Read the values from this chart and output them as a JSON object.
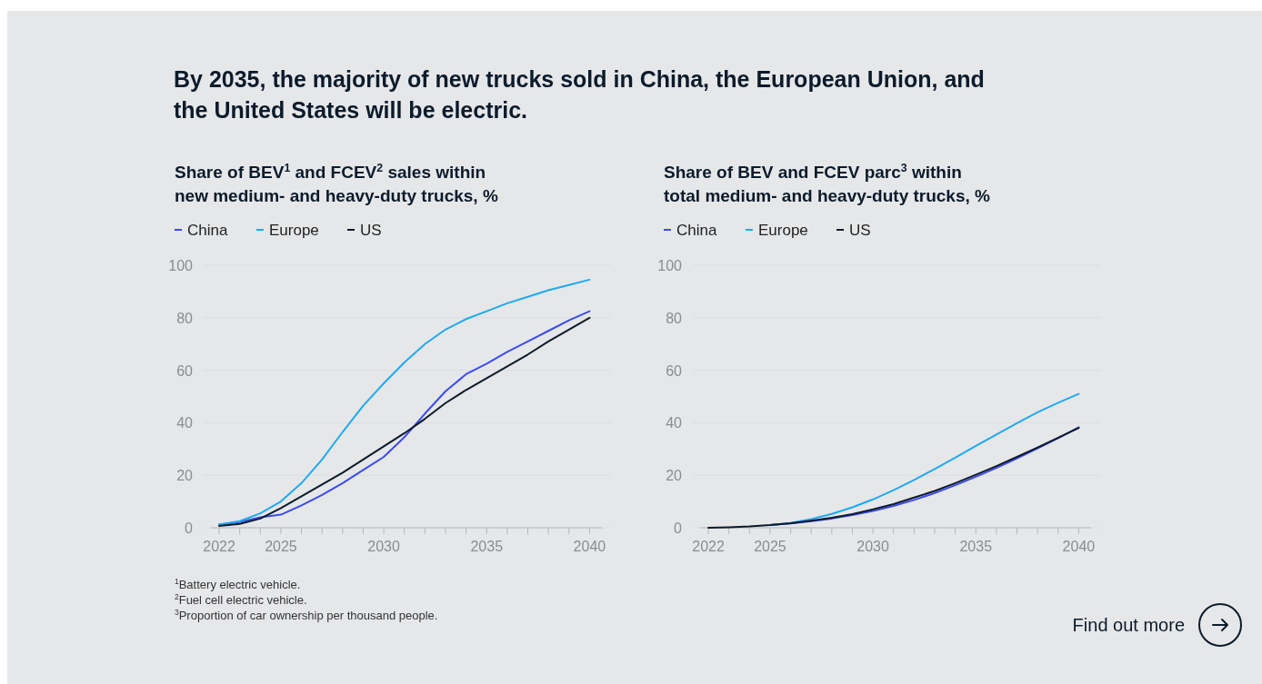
{
  "chart_data": [
    {
      "type": "line",
      "title": "By 2035, the majority of new trucks sold in China, the European Union, and the United States will be electric.",
      "subtitle": "Share of BEV$^{1}$ and FCEV$^{2}$ sales within new medium- and heavy-duty trucks, %",
      "x": [
        2022,
        2023,
        2024,
        2025,
        2026,
        2027,
        2028,
        2029,
        2030,
        2031,
        2032,
        2033,
        2034,
        2035,
        2036,
        2037,
        2038,
        2039,
        2040
      ],
      "xlim": [
        2021.6,
        2040.6
      ],
      "xticks": [
        2022,
        {
          "value": 2023,
          "label": null
        },
        {
          "value": 2024,
          "label": null
        },
        2025,
        {
          "value": 2026,
          "label": null
        },
        {
          "value": 2027,
          "label": null
        },
        {
          "value": 2028,
          "label": null
        },
        {
          "value": 2029,
          "label": null
        },
        2030,
        {
          "value": 2031,
          "label": null
        },
        {
          "value": 2032,
          "label": null
        },
        {
          "value": 2033,
          "label": null
        },
        {
          "value": 2034,
          "label": null
        },
        2035,
        {
          "value": 2036,
          "label": null
        },
        {
          "value": 2037,
          "label": null
        },
        {
          "value": 2038,
          "label": null
        },
        {
          "value": 2039,
          "label": null
        },
        2040
      ],
      "ylim": [
        0,
        100
      ],
      "yticks": [
        0,
        20,
        40,
        60,
        80,
        100
      ],
      "grid": "y",
      "legend": "top left",
      "marker": "none",
      "line_style": "solid",
      "series": [
        {
          "name": "China",
          "color": "#3b4cf0",
          "values": [
            1.2,
            2.2,
            4,
            5,
            8.5,
            12.5,
            17,
            22,
            27,
            34.5,
            43.5,
            52,
            58.5,
            62.5,
            67,
            71,
            75,
            79,
            82.5
          ]
        },
        {
          "name": "Europe",
          "color": "#1eaaf0",
          "values": [
            1.2,
            2.5,
            5.5,
            10,
            17,
            26,
            36.5,
            46.5,
            55,
            63,
            70,
            75.5,
            79.5,
            82.5,
            85.5,
            88,
            90.5,
            92.5,
            94.5
          ]
        },
        {
          "name": "US",
          "color": "#0d1a2a",
          "values": [
            0.7,
            1.5,
            3.5,
            7.5,
            12,
            16.5,
            21,
            26,
            31,
            36,
            41.5,
            47.5,
            52.5,
            57,
            61.5,
            66,
            71,
            75.5,
            80
          ]
        }
      ],
      "annotations": [
        "$^{1}$Battery electric vehicle.",
        "$^{2}$Fuel cell electric vehicle.",
        "$^{3}$Proportion of car ownership per thousand people."
      ]
    },
    {
      "type": "line",
      "subtitle": "Share of BEV and FCEV parc$^{3}$ within total medium- and heavy-duty trucks, %",
      "x": [
        2022,
        2023,
        2024,
        2025,
        2026,
        2027,
        2028,
        2029,
        2030,
        2031,
        2032,
        2033,
        2034,
        2035,
        2036,
        2037,
        2038,
        2039,
        2040
      ],
      "xlim": [
        2021.6,
        2040.6
      ],
      "xticks": [
        2022,
        {
          "value": 2023,
          "label": null
        },
        {
          "value": 2024,
          "label": null
        },
        2025,
        {
          "value": 2026,
          "label": null
        },
        {
          "value": 2027,
          "label": null
        },
        {
          "value": 2028,
          "label": null
        },
        {
          "value": 2029,
          "label": null
        },
        2030,
        {
          "value": 2031,
          "label": null
        },
        {
          "value": 2032,
          "label": null
        },
        {
          "value": 2033,
          "label": null
        },
        {
          "value": 2034,
          "label": null
        },
        2035,
        {
          "value": 2036,
          "label": null
        },
        {
          "value": 2037,
          "label": null
        },
        {
          "value": 2038,
          "label": null
        },
        {
          "value": 2039,
          "label": null
        },
        2040
      ],
      "ylim": [
        0,
        100
      ],
      "yticks": [
        0,
        20,
        40,
        60,
        80,
        100
      ],
      "grid": "y",
      "legend": "top left",
      "marker": "none",
      "line_style": "solid",
      "series": [
        {
          "name": "China",
          "color": "#3b4cf0",
          "values": [
            null,
            null,
            null,
            1,
            1.6,
            2.5,
            3.5,
            4.8,
            6.4,
            8.3,
            10.6,
            13.2,
            16.2,
            19.4,
            22.8,
            26.4,
            30.2,
            34.1,
            38.3
          ]
        },
        {
          "name": "Europe",
          "color": "#1eaaf0",
          "values": [
            null,
            null,
            null,
            1,
            1.8,
            3.3,
            5.3,
            7.8,
            10.8,
            14.3,
            18.2,
            22.4,
            26.7,
            31.2,
            35.5,
            39.8,
            44,
            47.6,
            51
          ]
        },
        {
          "name": "US",
          "color": "#0d1a2a",
          "values": [
            0,
            0.2,
            0.5,
            1,
            1.7,
            2.7,
            3.8,
            5.2,
            7,
            9,
            11.5,
            14,
            17,
            20.2,
            23.5,
            27,
            30.6,
            34.3,
            38
          ]
        }
      ],
      "annotations": [
        "Find out more"
      ]
    }
  ]
}
